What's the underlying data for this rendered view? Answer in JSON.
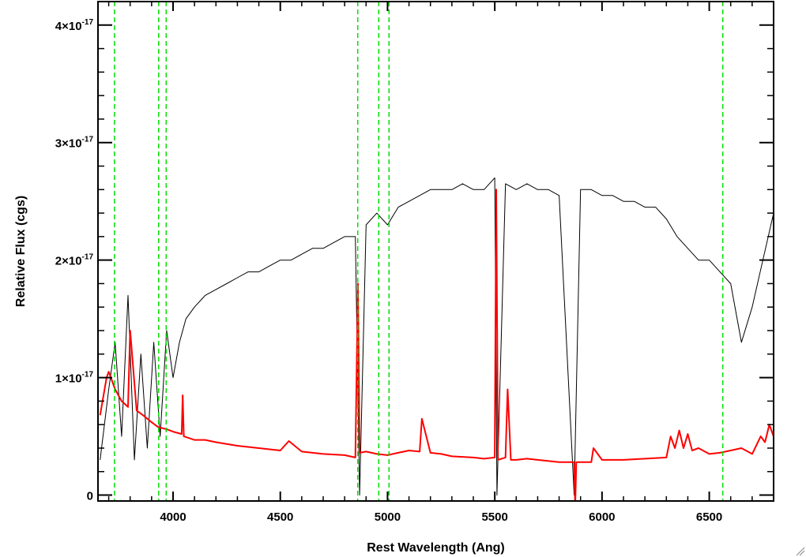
{
  "chart_data": {
    "type": "line",
    "xlabel": "Rest Wavelength (Ang)",
    "ylabel": "Relative Flux (cgs)",
    "xlim": [
      3650,
      6800
    ],
    "ylim": [
      -0.05,
      4.2
    ],
    "y_unit_exponent": "-17",
    "x_ticks": [
      {
        "value": 4000,
        "label": "4000"
      },
      {
        "value": 4500,
        "label": "4500"
      },
      {
        "value": 5000,
        "label": "5000"
      },
      {
        "value": 5500,
        "label": "5500"
      },
      {
        "value": 6000,
        "label": "6000"
      },
      {
        "value": 6500,
        "label": "6500"
      }
    ],
    "y_ticks": [
      {
        "value": 0,
        "label": "0"
      },
      {
        "value": 1,
        "label": "1×10",
        "sup": "-17"
      },
      {
        "value": 2,
        "label": "2×10",
        "sup": "-17"
      },
      {
        "value": 3,
        "label": "3×10",
        "sup": "-17"
      },
      {
        "value": 4,
        "label": "4×10",
        "sup": "-17"
      }
    ],
    "series": [
      {
        "color": "#000000",
        "x": [
          3660,
          3700,
          3730,
          3760,
          3790,
          3820,
          3850,
          3880,
          3910,
          3940,
          3970,
          4000,
          4030,
          4060,
          4100,
          4150,
          4200,
          4250,
          4300,
          4350,
          4400,
          4450,
          4500,
          4550,
          4600,
          4650,
          4700,
          4750,
          4800,
          4850,
          4870,
          4900,
          4950,
          5000,
          5050,
          5100,
          5150,
          5200,
          5250,
          5300,
          5350,
          5400,
          5450,
          5500,
          5510,
          5550,
          5600,
          5650,
          5700,
          5750,
          5800,
          5870,
          5900,
          5950,
          6000,
          6050,
          6100,
          6150,
          6200,
          6250,
          6300,
          6350,
          6400,
          6450,
          6500,
          6550,
          6600,
          6650,
          6700,
          6750,
          6800
        ],
        "y": [
          0.3,
          0.9,
          1.3,
          0.5,
          1.7,
          0.3,
          1.2,
          0.4,
          1.3,
          0.5,
          1.4,
          1.0,
          1.3,
          1.5,
          1.6,
          1.7,
          1.75,
          1.8,
          1.85,
          1.9,
          1.9,
          1.95,
          2.0,
          2.0,
          2.05,
          2.1,
          2.1,
          2.15,
          2.2,
          2.2,
          0.0,
          2.3,
          2.4,
          2.3,
          2.45,
          2.5,
          2.55,
          2.6,
          2.6,
          2.6,
          2.65,
          2.6,
          2.6,
          2.7,
          0.0,
          2.65,
          2.6,
          2.65,
          2.6,
          2.6,
          2.55,
          0.0,
          2.6,
          2.6,
          2.55,
          2.55,
          2.5,
          2.5,
          2.45,
          2.45,
          2.35,
          2.2,
          2.1,
          2.0,
          2.0,
          1.9,
          1.8,
          1.3,
          1.6,
          2.0,
          2.4
        ]
      },
      {
        "color": "#ff0000",
        "x": [
          3660,
          3690,
          3700,
          3730,
          3760,
          3790,
          3800,
          3830,
          3860,
          3900,
          3930,
          3970,
          4000,
          4040,
          4045,
          4050,
          4100,
          4150,
          4200,
          4300,
          4400,
          4500,
          4540,
          4600,
          4700,
          4800,
          4850,
          4862,
          4870,
          4900,
          4950,
          5000,
          5050,
          5100,
          5150,
          5160,
          5200,
          5250,
          5300,
          5400,
          5450,
          5500,
          5507,
          5515,
          5550,
          5560,
          5575,
          5600,
          5650,
          5700,
          5800,
          5870,
          5875,
          5880,
          5950,
          5960,
          6000,
          6100,
          6200,
          6300,
          6320,
          6340,
          6360,
          6380,
          6400,
          6420,
          6450,
          6500,
          6550,
          6600,
          6650,
          6700,
          6740,
          6760,
          6780,
          6800
        ],
        "y": [
          0.68,
          1.0,
          1.05,
          0.9,
          0.8,
          0.75,
          1.4,
          0.72,
          0.68,
          0.62,
          0.58,
          0.56,
          0.54,
          0.52,
          0.85,
          0.5,
          0.47,
          0.47,
          0.45,
          0.42,
          0.4,
          0.38,
          0.46,
          0.37,
          0.35,
          0.34,
          0.32,
          1.8,
          0.36,
          0.37,
          0.35,
          0.34,
          0.36,
          0.38,
          0.37,
          0.65,
          0.36,
          0.35,
          0.33,
          0.32,
          0.31,
          0.32,
          2.6,
          0.3,
          0.32,
          0.9,
          0.3,
          0.3,
          0.31,
          0.3,
          0.28,
          0.28,
          -0.1,
          0.28,
          0.28,
          0.4,
          0.3,
          0.3,
          0.31,
          0.32,
          0.5,
          0.4,
          0.55,
          0.4,
          0.52,
          0.38,
          0.4,
          0.35,
          0.36,
          0.38,
          0.4,
          0.35,
          0.5,
          0.45,
          0.6,
          0.5
        ]
      }
    ],
    "vertical_lines": [
      {
        "x": 3727,
        "style": "dashed",
        "color": "#00dd00"
      },
      {
        "x": 3933,
        "style": "dashed",
        "color": "#00dd00"
      },
      {
        "x": 3968,
        "style": "dashed",
        "color": "#00dd00"
      },
      {
        "x": 4861,
        "style": "dashed",
        "color": "#00dd00"
      },
      {
        "x": 4959,
        "style": "dashed",
        "color": "#00dd00"
      },
      {
        "x": 5007,
        "style": "dashed",
        "color": "#00dd00"
      },
      {
        "x": 6563,
        "style": "dashed",
        "color": "#00dd00"
      }
    ],
    "grid": false,
    "legend": "none"
  }
}
